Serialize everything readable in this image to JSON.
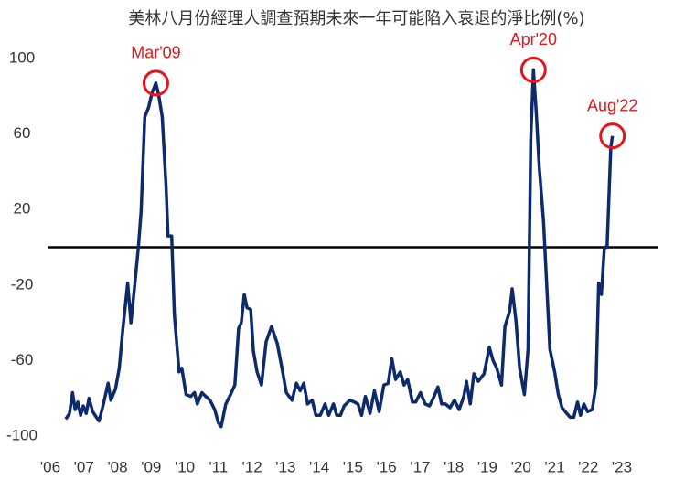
{
  "chart_data": {
    "type": "line",
    "title": "美林八月份經理人調查預期未來一年可能陷入衰退的淨比例(%)",
    "x": [
      2006.46,
      2006.57,
      2006.66,
      2006.74,
      2006.82,
      2006.9,
      2006.98,
      2007.07,
      2007.15,
      2007.26,
      2007.37,
      2007.45,
      2007.58,
      2007.72,
      2007.8,
      2007.94,
      2008.05,
      2008.16,
      2008.3,
      2008.4,
      2008.51,
      2008.62,
      2008.7,
      2008.81,
      2008.92,
      2009.03,
      2009.14,
      2009.22,
      2009.33,
      2009.44,
      2009.5,
      2009.61,
      2009.69,
      2009.83,
      2009.91,
      2010.04,
      2010.18,
      2010.29,
      2010.37,
      2010.51,
      2010.62,
      2010.75,
      2010.89,
      2011.0,
      2011.08,
      2011.22,
      2011.36,
      2011.49,
      2011.6,
      2011.68,
      2011.77,
      2011.85,
      2011.96,
      2012.04,
      2012.15,
      2012.28,
      2012.42,
      2012.58,
      2012.75,
      2012.89,
      2013.02,
      2013.19,
      2013.32,
      2013.43,
      2013.54,
      2013.65,
      2013.79,
      2013.9,
      2014.03,
      2014.17,
      2014.28,
      2014.42,
      2014.52,
      2014.63,
      2014.74,
      2014.91,
      2015.04,
      2015.15,
      2015.26,
      2015.37,
      2015.51,
      2015.64,
      2015.78,
      2015.92,
      2016.05,
      2016.16,
      2016.27,
      2016.41,
      2016.52,
      2016.63,
      2016.77,
      2016.87,
      2017.01,
      2017.15,
      2017.28,
      2017.39,
      2017.53,
      2017.64,
      2017.75,
      2017.89,
      2018.02,
      2018.16,
      2018.3,
      2018.38,
      2018.49,
      2018.6,
      2018.73,
      2018.9,
      2019.06,
      2019.17,
      2019.28,
      2019.42,
      2019.52,
      2019.66,
      2019.74,
      2019.85,
      2019.96,
      2020.1,
      2020.21,
      2020.29,
      2020.37,
      2020.45,
      2020.54,
      2020.67,
      2020.75,
      2020.86,
      2021.0,
      2021.11,
      2021.22,
      2021.36,
      2021.46,
      2021.57,
      2021.68,
      2021.77,
      2021.87,
      2021.98,
      2022.12,
      2022.23,
      2022.31,
      2022.39,
      2022.48,
      2022.56,
      2022.67,
      2022.72
    ],
    "series": [
      {
        "name": "淨比例",
        "color": "#0d2a6b",
        "values": [
          -91,
          -88,
          -77,
          -86,
          -82,
          -89,
          -84,
          -88,
          -80,
          -87,
          -90,
          -92,
          -83,
          -72,
          -81,
          -75,
          -64,
          -43,
          -19,
          -40,
          -20,
          0,
          19,
          69,
          74,
          82,
          87,
          81,
          69,
          33,
          6,
          6,
          -36,
          -66,
          -64,
          -78,
          -79,
          -77,
          -83,
          -77,
          -79,
          -81,
          -86,
          -93,
          -95,
          -83,
          -78,
          -73,
          -43,
          -40,
          -25,
          -32,
          -33,
          -55,
          -66,
          -73,
          -50,
          -42,
          -51,
          -64,
          -77,
          -81,
          -72,
          -76,
          -72,
          -83,
          -81,
          -89,
          -89,
          -83,
          -89,
          -83,
          -89,
          -89,
          -84,
          -81,
          -82,
          -83,
          -89,
          -79,
          -88,
          -76,
          -87,
          -73,
          -72,
          -59,
          -70,
          -66,
          -73,
          -70,
          -82,
          -82,
          -77,
          -83,
          -84,
          -80,
          -74,
          -83,
          -83,
          -85,
          -81,
          -86,
          -79,
          -71,
          -83,
          -67,
          -71,
          -67,
          -53,
          -60,
          -64,
          -73,
          -42,
          -34,
          -22,
          -39,
          -64,
          -78,
          -54,
          58,
          94,
          72,
          43,
          14,
          -15,
          -54,
          -66,
          -78,
          -85,
          -88,
          -90,
          -90,
          -82,
          -89,
          -83,
          -87,
          -86,
          -73,
          -19,
          -25,
          0,
          0,
          53,
          59
        ]
      }
    ],
    "annotations": [
      "Mar'09",
      "Apr'20",
      "Aug'22"
    ],
    "annotation_color": "#e8141c",
    "hline": 0,
    "xlim": [
      2006,
      2023
    ],
    "xticks": [
      {
        "value": 2006,
        "label": "'06"
      },
      {
        "value": 2007,
        "label": "'07"
      },
      {
        "value": 2008,
        "label": "'08"
      },
      {
        "value": 2009,
        "label": "'09"
      },
      {
        "value": 2010,
        "label": "'10"
      },
      {
        "value": 2011,
        "label": "'11"
      },
      {
        "value": 2012,
        "label": "'12"
      },
      {
        "value": 2013,
        "label": "'13"
      },
      {
        "value": 2014,
        "label": "'14"
      },
      {
        "value": 2015,
        "label": "'15"
      },
      {
        "value": 2016,
        "label": "'16"
      },
      {
        "value": 2017,
        "label": "'17"
      },
      {
        "value": 2018,
        "label": "'18"
      },
      {
        "value": 2019,
        "label": "'19"
      },
      {
        "value": 2020,
        "label": "'20"
      },
      {
        "value": 2021,
        "label": "'21"
      },
      {
        "value": 2022,
        "label": "'22"
      },
      {
        "value": 2023,
        "label": "'23"
      }
    ],
    "ylim": [
      -100,
      100
    ],
    "yticks": [
      100,
      60,
      20,
      -20,
      -60,
      -100
    ],
    "grid": false
  }
}
